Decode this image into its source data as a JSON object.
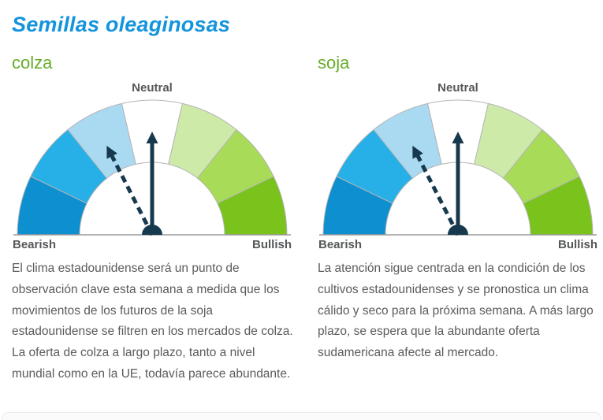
{
  "page": {
    "title": "Semillas oleaginosas",
    "title_color": "#1494dc",
    "heading_color": "#66ad29"
  },
  "sections": [
    {
      "id": "colza",
      "heading": "colza",
      "text": "El clima estadounidense será un punto de observación clave esta semana a medida que los movimientos de los futuros de la soja estadounidense se filtren en los mercados de colza. La oferta de colza a largo plazo, tanto a nivel mundial como en la UE, todavía parece abundante."
    },
    {
      "id": "soja",
      "heading": "soja",
      "text": "La atención sigue centrada en la condición de los cultivos estadounidenses y se pronostica un clima cálido y seco para la próxima semana. A más largo plazo, se espera que la abundante oferta sudamericana afecte al mercado."
    }
  ],
  "chart_data": [
    {
      "type": "gauge",
      "title": "colza",
      "scale_labels": [
        "Bearish",
        "Neutral",
        "Bullish"
      ],
      "range_deg": [
        -90,
        90
      ],
      "segments": [
        {
          "from_deg": -90,
          "to_deg": -64.3,
          "color": "#0e8fd0",
          "label": "very bearish"
        },
        {
          "from_deg": -64.3,
          "to_deg": -38.7,
          "color": "#27b0e7",
          "label": "bearish"
        },
        {
          "from_deg": -38.7,
          "to_deg": -13,
          "color": "#aadaf2",
          "label": "slightly bearish"
        },
        {
          "from_deg": -13,
          "to_deg": 13,
          "color": "#ffffff",
          "label": "neutral"
        },
        {
          "from_deg": 13,
          "to_deg": 38.7,
          "color": "#cdeaa9",
          "label": "slightly bullish"
        },
        {
          "from_deg": 38.7,
          "to_deg": 64.3,
          "color": "#a7db58",
          "label": "bullish"
        },
        {
          "from_deg": 64.3,
          "to_deg": 90,
          "color": "#7ac31d",
          "label": "very bullish"
        }
      ],
      "needles": [
        {
          "style": "solid",
          "angle_deg": 0,
          "points_to": "neutral"
        },
        {
          "style": "dashed",
          "angle_deg": -27,
          "points_to": "slightly bearish"
        }
      ],
      "needle_color": "#17394d",
      "segment_stroke": "#b5b5b5",
      "baseline_color": "#9b9b9b"
    },
    {
      "type": "gauge",
      "title": "soja",
      "scale_labels": [
        "Bearish",
        "Neutral",
        "Bullish"
      ],
      "range_deg": [
        -90,
        90
      ],
      "segments": [
        {
          "from_deg": -90,
          "to_deg": -64.3,
          "color": "#0e8fd0",
          "label": "very bearish"
        },
        {
          "from_deg": -64.3,
          "to_deg": -38.7,
          "color": "#27b0e7",
          "label": "bearish"
        },
        {
          "from_deg": -38.7,
          "to_deg": -13,
          "color": "#aadaf2",
          "label": "slightly bearish"
        },
        {
          "from_deg": -13,
          "to_deg": 13,
          "color": "#ffffff",
          "label": "neutral"
        },
        {
          "from_deg": 13,
          "to_deg": 38.7,
          "color": "#cdeaa9",
          "label": "slightly bullish"
        },
        {
          "from_deg": 38.7,
          "to_deg": 64.3,
          "color": "#a7db58",
          "label": "bullish"
        },
        {
          "from_deg": 64.3,
          "to_deg": 90,
          "color": "#7ac31d",
          "label": "very bullish"
        }
      ],
      "needles": [
        {
          "style": "solid",
          "angle_deg": 0,
          "points_to": "neutral"
        },
        {
          "style": "dashed",
          "angle_deg": -27,
          "points_to": "slightly bearish"
        }
      ],
      "needle_color": "#17394d",
      "segment_stroke": "#b5b5b5",
      "baseline_color": "#9b9b9b"
    }
  ]
}
